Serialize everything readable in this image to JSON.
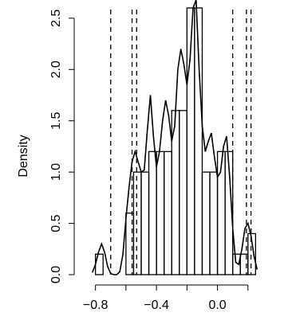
{
  "chart_data": {
    "type": "histogram",
    "title": "",
    "xlabel": "",
    "ylabel": "Density",
    "xlim": [
      -0.84,
      0.29
    ],
    "ylim": [
      0,
      2.6
    ],
    "x_ticks": [
      -0.8,
      -0.4,
      0.0
    ],
    "x_tick_labels": [
      "−0.8",
      "−0.4",
      "0.0"
    ],
    "y_ticks": [
      0.0,
      0.5,
      1.0,
      1.5,
      2.0,
      2.5
    ],
    "y_tick_labels": [
      "0.0",
      "0.5",
      "1.0",
      "1.5",
      "2.0",
      "2.5"
    ],
    "bins": [
      {
        "x0": -0.8,
        "x1": -0.75,
        "density": 0.2
      },
      {
        "x0": -0.75,
        "x1": -0.7,
        "density": 0.0
      },
      {
        "x0": -0.7,
        "x1": -0.65,
        "density": 0.0
      },
      {
        "x0": -0.65,
        "x1": -0.6,
        "density": 0.0
      },
      {
        "x0": -0.6,
        "x1": -0.55,
        "density": 0.6
      },
      {
        "x0": -0.55,
        "x1": -0.5,
        "density": 1.0
      },
      {
        "x0": -0.5,
        "x1": -0.45,
        "density": 1.0
      },
      {
        "x0": -0.45,
        "x1": -0.4,
        "density": 1.2
      },
      {
        "x0": -0.4,
        "x1": -0.35,
        "density": 1.2
      },
      {
        "x0": -0.35,
        "x1": -0.3,
        "density": 1.2
      },
      {
        "x0": -0.3,
        "x1": -0.25,
        "density": 1.6
      },
      {
        "x0": -0.25,
        "x1": -0.2,
        "density": 1.6
      },
      {
        "x0": -0.2,
        "x1": -0.15,
        "density": 2.6
      },
      {
        "x0": -0.15,
        "x1": -0.1,
        "density": 2.6
      },
      {
        "x0": -0.1,
        "x1": -0.05,
        "density": 1.0
      },
      {
        "x0": -0.05,
        "x1": 0.0,
        "density": 1.0
      },
      {
        "x0": 0.0,
        "x1": 0.05,
        "density": 1.2
      },
      {
        "x0": 0.05,
        "x1": 0.1,
        "density": 1.2
      },
      {
        "x0": 0.1,
        "x1": 0.15,
        "density": 0.2
      },
      {
        "x0": 0.15,
        "x1": 0.2,
        "density": 0.2
      },
      {
        "x0": 0.2,
        "x1": 0.25,
        "density": 0.4
      }
    ],
    "density_curve": {
      "x": [
        -0.82,
        -0.8,
        -0.78,
        -0.76,
        -0.74,
        -0.72,
        -0.7,
        -0.68,
        -0.66,
        -0.64,
        -0.62,
        -0.6,
        -0.58,
        -0.56,
        -0.54,
        -0.52,
        -0.5,
        -0.48,
        -0.46,
        -0.44,
        -0.42,
        -0.4,
        -0.38,
        -0.36,
        -0.34,
        -0.32,
        -0.3,
        -0.28,
        -0.26,
        -0.24,
        -0.22,
        -0.2,
        -0.18,
        -0.16,
        -0.14,
        -0.12,
        -0.1,
        -0.08,
        -0.06,
        -0.04,
        -0.02,
        0.0,
        0.02,
        0.04,
        0.06,
        0.08,
        0.1,
        0.12,
        0.14,
        0.16,
        0.18,
        0.2,
        0.22,
        0.24,
        0.26
      ],
      "y": [
        0.02,
        0.1,
        0.22,
        0.3,
        0.22,
        0.08,
        0.01,
        0.0,
        0.0,
        0.03,
        0.2,
        0.55,
        0.85,
        1.1,
        1.2,
        1.1,
        1.0,
        1.02,
        1.4,
        1.75,
        1.35,
        1.05,
        1.2,
        1.5,
        1.7,
        1.55,
        1.3,
        1.45,
        2.0,
        2.2,
        2.05,
        1.85,
        2.1,
        2.6,
        2.75,
        2.0,
        1.45,
        1.2,
        1.3,
        1.38,
        1.15,
        0.95,
        1.0,
        1.25,
        1.35,
        0.95,
        0.45,
        0.12,
        0.1,
        0.25,
        0.45,
        0.5,
        0.38,
        0.18,
        0.05
      ]
    },
    "vlines_dashed": [
      -0.7,
      -0.56,
      -0.53,
      0.1,
      0.19,
      0.22
    ],
    "grid": false,
    "legend": "none"
  }
}
